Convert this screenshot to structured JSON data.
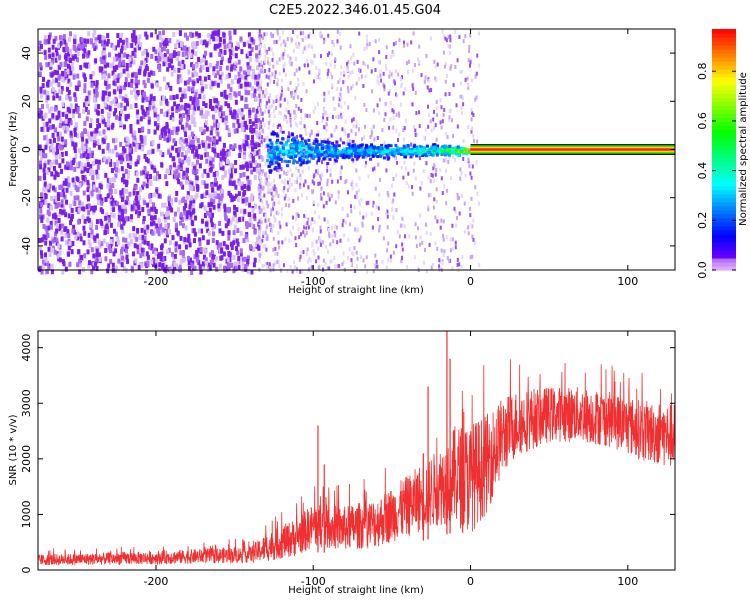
{
  "title": "C2E5.2022.346.01.45.G04",
  "chart_data": [
    {
      "type": "heatmap",
      "xlabel": "Height of straight line (km)",
      "ylabel": "Frequency (Hz)",
      "xlim": [
        -275,
        130
      ],
      "ylim": [
        -50,
        50
      ],
      "xticks": [
        -200,
        -100,
        0,
        100
      ],
      "yticks": [
        -40,
        -20,
        0,
        20,
        40
      ],
      "colorbar": {
        "label": "Normalized spectral amplitude",
        "range": [
          0,
          0.97
        ],
        "ticks": [
          0.0,
          0.2,
          0.4,
          0.6,
          0.8
        ]
      },
      "features": {
        "noise_region_x": [
          -275,
          -135
        ],
        "scatter_region_x": [
          -135,
          0
        ],
        "tone_frequency": 0,
        "tone_region_x": [
          0,
          130
        ],
        "tone_band_halfwidth_hz": 2
      },
      "ridge_profile": [
        {
          "x": -130,
          "halfwidth": 12,
          "peak": 0.35
        },
        {
          "x": -110,
          "halfwidth": 10,
          "peak": 0.38
        },
        {
          "x": -90,
          "halfwidth": 6,
          "peak": 0.32
        },
        {
          "x": -70,
          "halfwidth": 4,
          "peak": 0.35
        },
        {
          "x": -50,
          "halfwidth": 4,
          "peak": 0.4
        },
        {
          "x": -30,
          "halfwidth": 3,
          "peak": 0.45
        },
        {
          "x": -15,
          "halfwidth": 3,
          "peak": 0.6
        },
        {
          "x": 0,
          "halfwidth": 2,
          "peak": 0.9
        }
      ]
    },
    {
      "type": "line",
      "xlabel": "Height of straight line (km)",
      "ylabel": "SNR (10 * v/v)",
      "xlim": [
        -275,
        130
      ],
      "ylim": [
        0,
        4300
      ],
      "xticks": [
        -200,
        -100,
        0,
        100
      ],
      "yticks": [
        0,
        1000,
        2000,
        3000,
        4000
      ],
      "series_color": "#f03030",
      "envelope": {
        "x": [
          -275,
          -200,
          -140,
          -130,
          -110,
          -100,
          -80,
          -60,
          -40,
          -20,
          -10,
          0,
          10,
          20,
          30,
          50,
          70,
          90,
          110,
          130
        ],
        "mean": [
          180,
          220,
          280,
          400,
          600,
          800,
          750,
          850,
          1150,
          1500,
          1700,
          1650,
          1900,
          2400,
          2650,
          2800,
          2800,
          2700,
          2500,
          2400
        ],
        "spread": [
          100,
          120,
          150,
          250,
          350,
          400,
          400,
          450,
          550,
          700,
          900,
          1000,
          900,
          700,
          600,
          500,
          500,
          500,
          550,
          600
        ]
      },
      "spikes": [
        {
          "x": -97,
          "y": 2600
        },
        {
          "x": -93,
          "y": 1900
        },
        {
          "x": -30,
          "y": 2100
        },
        {
          "x": -27,
          "y": 3300
        },
        {
          "x": -15,
          "y": 4300
        },
        {
          "x": -13,
          "y": 3800
        },
        {
          "x": -5,
          "y": 2900
        }
      ]
    }
  ]
}
